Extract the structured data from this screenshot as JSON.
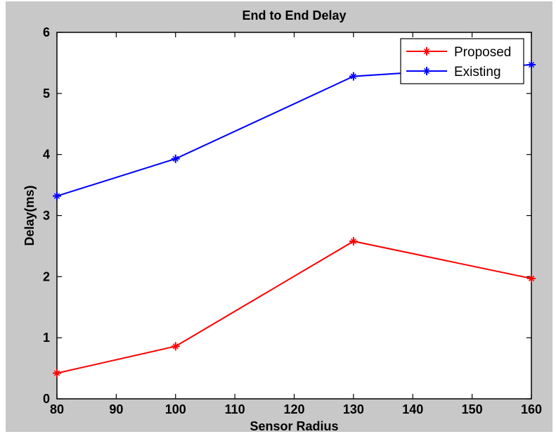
{
  "chart_data": {
    "type": "line",
    "title": "End to End Delay",
    "xlabel": "Sensor Radius",
    "ylabel": "Delay(ms)",
    "xlim": [
      80,
      160
    ],
    "ylim": [
      0,
      6
    ],
    "xticks": [
      80,
      90,
      100,
      110,
      120,
      130,
      140,
      150,
      160
    ],
    "yticks": [
      0,
      1,
      2,
      3,
      4,
      5,
      6
    ],
    "grid": false,
    "legend_position": "top-right",
    "x": [
      80,
      100,
      130,
      160
    ],
    "series": [
      {
        "name": "Proposed",
        "color": "#ff0000",
        "marker": "star",
        "values": [
          0.42,
          0.86,
          2.58,
          1.97
        ]
      },
      {
        "name": "Existing",
        "color": "#0000ff",
        "marker": "star",
        "values": [
          3.32,
          3.93,
          5.28,
          5.47
        ]
      }
    ]
  }
}
